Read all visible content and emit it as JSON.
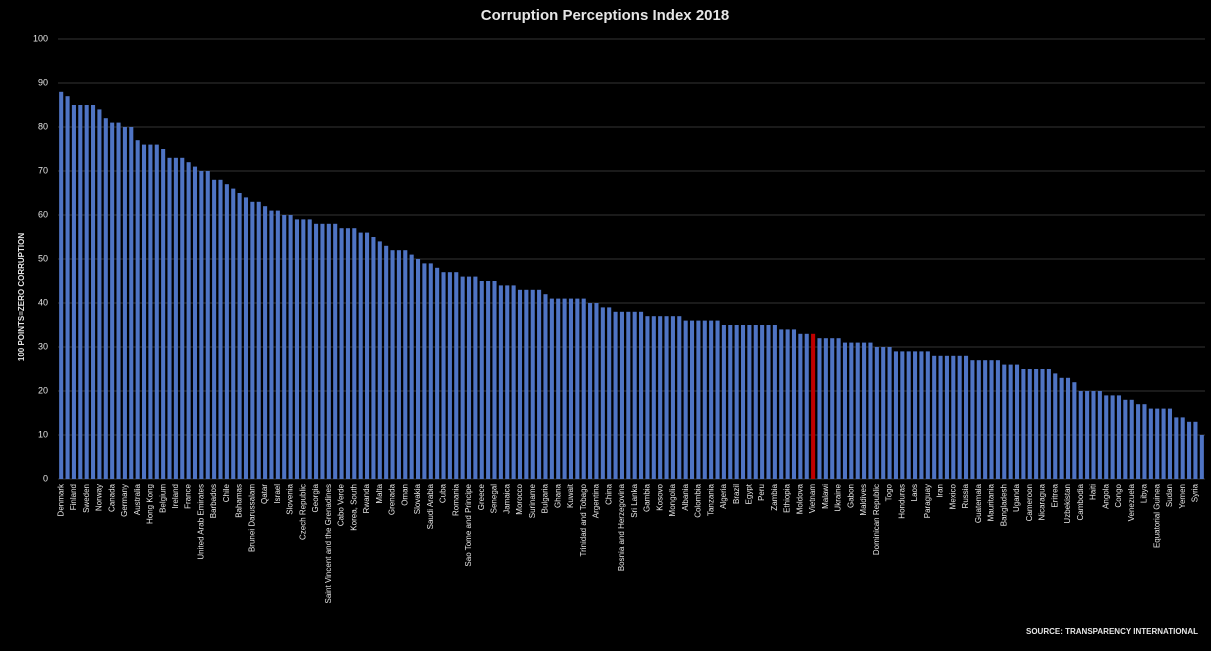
{
  "chart_data": {
    "type": "bar",
    "title": "Corruption Perceptions Index 2018",
    "ylabel": "100 POINTS=ZERO CORRUPTION",
    "source": "SOURCE: TRANSPARENCY INTERNATIONAL",
    "color": "#4f74c4",
    "highlight": {
      "category": "Vietnam",
      "color": "#c00000"
    },
    "ylim": [
      0,
      100
    ],
    "yticks": [
      0,
      10,
      20,
      30,
      40,
      50,
      60,
      70,
      80,
      90,
      100
    ],
    "grid": true,
    "categories": [
      "Denmark",
      null,
      "Finland",
      null,
      "Sweden",
      null,
      "Norway",
      null,
      "Canada",
      null,
      "Germany",
      null,
      "Australia",
      null,
      "Hong Kong",
      null,
      "Belgium",
      null,
      "Ireland",
      null,
      "France",
      null,
      "United Arab Emirates",
      null,
      "Barbados",
      null,
      "Chile",
      null,
      "Bahamas",
      null,
      "Brunei Darussalam",
      null,
      "Qatar",
      null,
      "Israel",
      null,
      "Slovenia",
      null,
      "Czech Republic",
      null,
      "Georgia",
      null,
      "Saint Vincent and the Grenadines",
      null,
      "Cabo Verde",
      null,
      "Korea, South",
      null,
      "Rwanda",
      null,
      "Malta",
      null,
      "Grenada",
      null,
      "Oman",
      null,
      "Slovakia",
      null,
      "Saudi Arabia",
      null,
      "Cuba",
      null,
      "Romania",
      null,
      "Sao Tome and Principe",
      null,
      "Greece",
      null,
      "Senegal",
      null,
      "Jamaica",
      null,
      "Morocco",
      null,
      "Suriname",
      null,
      "Bulgaria",
      null,
      "Ghana",
      null,
      "Kuwait",
      null,
      "Trinidad and Tobago",
      null,
      "Argentina",
      null,
      "China",
      null,
      "Bosnia and Herzegovina",
      null,
      "Sri Lanka",
      null,
      "Gambia",
      null,
      "Kosovo",
      null,
      "Mongolia",
      null,
      "Albania",
      null,
      "Colombia",
      null,
      "Tanzania",
      null,
      "Algeria",
      null,
      "Brazil",
      null,
      "Egypt",
      null,
      "Peru",
      null,
      "Zambia",
      null,
      "Ethiopia",
      null,
      "Moldova",
      null,
      "Vietnam",
      null,
      "Malawi",
      null,
      "Ukraine",
      null,
      "Gabon",
      null,
      "Maldives",
      null,
      "Dominican Republic",
      null,
      "Togo",
      null,
      "Honduras",
      null,
      "Laos",
      null,
      "Paraguay",
      null,
      "Iran",
      null,
      "Mexico",
      null,
      "Russia",
      null,
      "Guatemala",
      null,
      "Mauritania",
      null,
      "Bangladesh",
      null,
      "Uganda",
      null,
      "Cameroon",
      null,
      "Nicaragua",
      null,
      "Eritrea",
      null,
      "Uzbekistan",
      null,
      "Cambodia",
      null,
      "Haiti",
      null,
      "Angola",
      null,
      "Congo",
      null,
      "Venezuela",
      null,
      "Libya",
      null,
      "Equatorial Guinea",
      null,
      "Sudan",
      null,
      "Yemen",
      null,
      "Syria",
      null
    ],
    "values": [
      88,
      87,
      85,
      85,
      85,
      85,
      84,
      82,
      81,
      81,
      80,
      80,
      77,
      76,
      76,
      76,
      75,
      73,
      73,
      73,
      72,
      71,
      70,
      70,
      68,
      68,
      67,
      66,
      65,
      64,
      63,
      63,
      62,
      61,
      61,
      60,
      60,
      59,
      59,
      59,
      58,
      58,
      58,
      58,
      57,
      57,
      57,
      56,
      56,
      55,
      54,
      53,
      52,
      52,
      52,
      51,
      50,
      49,
      49,
      48,
      47,
      47,
      47,
      46,
      46,
      46,
      45,
      45,
      45,
      44,
      44,
      44,
      43,
      43,
      43,
      43,
      42,
      41,
      41,
      41,
      41,
      41,
      41,
      40,
      40,
      39,
      39,
      38,
      38,
      38,
      38,
      38,
      37,
      37,
      37,
      37,
      37,
      37,
      36,
      36,
      36,
      36,
      36,
      36,
      35,
      35,
      35,
      35,
      35,
      35,
      35,
      35,
      35,
      34,
      34,
      34,
      33,
      33,
      33,
      32,
      32,
      32,
      32,
      31,
      31,
      31,
      31,
      31,
      30,
      30,
      30,
      29,
      29,
      29,
      29,
      29,
      29,
      28,
      28,
      28,
      28,
      28,
      28,
      27,
      27,
      27,
      27,
      27,
      26,
      26,
      26,
      25,
      25,
      25,
      25,
      25,
      24,
      23,
      23,
      22,
      20,
      20,
      20,
      20,
      19,
      19,
      19,
      18,
      18,
      17,
      17,
      16,
      16,
      16,
      16,
      14,
      14,
      13,
      13,
      10
    ]
  }
}
